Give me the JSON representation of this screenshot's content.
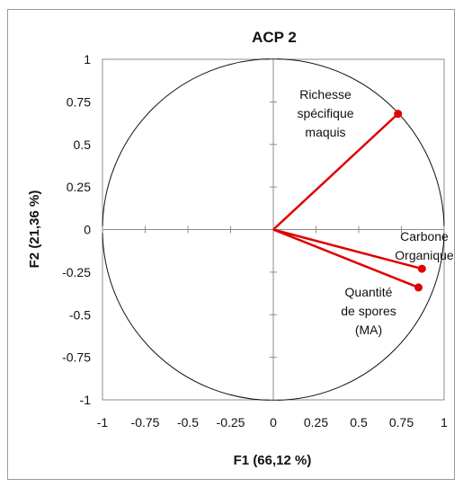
{
  "chart_data": {
    "type": "scatter",
    "title": "ACP 2",
    "xlabel": "F1 (66,12 %)",
    "ylabel": "F2 (21,36 %)",
    "xlim": [
      -1,
      1
    ],
    "ylim": [
      -1,
      1
    ],
    "x_ticks": [
      "-1",
      "-0.75",
      "-0.5",
      "-0.25",
      "0",
      "0.25",
      "0.5",
      "0.75",
      "1"
    ],
    "y_ticks": [
      "1",
      "0.75",
      "0.5",
      "0.25",
      "0",
      "-0.25",
      "-0.5",
      "-0.75",
      "-1"
    ],
    "grid": false,
    "correlation_circle": true,
    "vector_color": "#e00000",
    "points": [
      {
        "label_lines": [
          "Richesse",
          "spécifique",
          "maquis"
        ],
        "x": 0.73,
        "y": 0.68
      },
      {
        "label_lines": [
          "Carbone",
          "Organique"
        ],
        "x": 0.87,
        "y": -0.23
      },
      {
        "label_lines": [
          "Quantité",
          "de spores",
          "(MA)"
        ],
        "x": 0.85,
        "y": -0.34
      }
    ]
  }
}
